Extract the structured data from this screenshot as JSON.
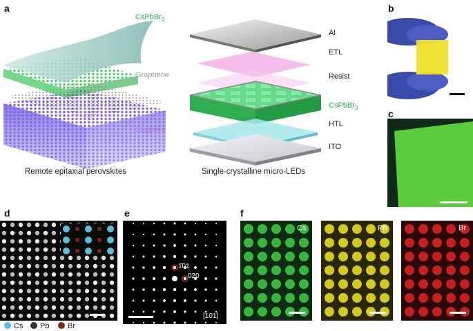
{
  "panels": {
    "a": {
      "label": "a",
      "left": {
        "caption": "Remote epitaxial perovskites",
        "layer_top": {
          "text": "CsPbBr",
          "sub": "3",
          "color": "#22b14c"
        },
        "layer_mid": {
          "text": "Graphene",
          "color": "#9a9a9a"
        },
        "layer_bottom": {
          "text": "Sapphire",
          "color": "#b47be0"
        }
      },
      "right": {
        "caption": "Single-crystalline micro-LEDs",
        "layers": [
          {
            "text": "Al",
            "color": "#222222"
          },
          {
            "text": "ETL",
            "color": "#222222"
          },
          {
            "text": "Resist",
            "color": "#222222"
          },
          {
            "text": "CsPbBr",
            "sub": "3",
            "color": "#22b14c"
          },
          {
            "text": "HTL",
            "color": "#222222"
          },
          {
            "text": "ITO",
            "color": "#222222"
          }
        ]
      }
    },
    "b": {
      "label": "b"
    },
    "c": {
      "label": "c"
    },
    "d": {
      "label": "d",
      "legend": [
        {
          "text": "Cs",
          "color": "#5bbde0"
        },
        {
          "text": "Pb",
          "color": "#333333"
        },
        {
          "text": "Br",
          "color": "#7a2a14"
        }
      ]
    },
    "e": {
      "label": "e",
      "spot1": "1̄01",
      "spot2": "020",
      "zone": "[101]"
    },
    "f": {
      "label": "f",
      "maps": [
        {
          "text": "Cs",
          "color": "#2fbf3a"
        },
        {
          "text": "Pb",
          "color": "#e8e020"
        },
        {
          "text": "Br",
          "color": "#d02020"
        }
      ]
    }
  }
}
